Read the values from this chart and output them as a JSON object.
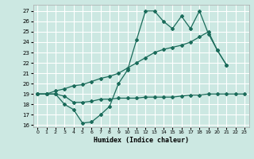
{
  "xlabel": "Humidex (Indice chaleur)",
  "bg_color": "#cce8e2",
  "grid_color": "#ffffff",
  "line_color": "#1a6b5a",
  "xlim": [
    -0.5,
    23.5
  ],
  "ylim": [
    15.8,
    27.6
  ],
  "xticks": [
    0,
    1,
    2,
    3,
    4,
    5,
    6,
    7,
    8,
    9,
    10,
    11,
    12,
    13,
    14,
    15,
    16,
    17,
    18,
    19,
    20,
    21,
    22,
    23
  ],
  "yticks": [
    16,
    17,
    18,
    19,
    20,
    21,
    22,
    23,
    24,
    25,
    26,
    27
  ],
  "line1": {
    "x": [
      0,
      1,
      2,
      3,
      4,
      5,
      6,
      7,
      8,
      9,
      10,
      11,
      12,
      13,
      14,
      15,
      16,
      17,
      18,
      19,
      20,
      21
    ],
    "y": [
      19,
      19,
      19,
      18,
      17.5,
      16.2,
      16.3,
      17.0,
      17.8,
      20.0,
      21.3,
      24.2,
      27.0,
      27.0,
      26.0,
      25.3,
      26.5,
      25.3,
      27.0,
      24.8,
      23.2,
      21.8
    ]
  },
  "line2": {
    "x": [
      0,
      1,
      2,
      3,
      4,
      5,
      6,
      7,
      8,
      9,
      10,
      11,
      12,
      13,
      14,
      15,
      16,
      17,
      18,
      19,
      20,
      21
    ],
    "y": [
      19,
      19,
      19.3,
      19.5,
      19.8,
      19.9,
      20.2,
      20.5,
      20.7,
      21.0,
      21.5,
      22.0,
      22.5,
      23.0,
      23.3,
      23.5,
      23.7,
      24.0,
      24.5,
      25.0,
      23.2,
      21.8
    ]
  },
  "line3": {
    "x": [
      0,
      1,
      2,
      3,
      4,
      5,
      6,
      7,
      8,
      9,
      10,
      11,
      12,
      13,
      14,
      15,
      16,
      17,
      18,
      19,
      20,
      21,
      22,
      23
    ],
    "y": [
      19,
      19,
      19,
      18.8,
      18.2,
      18.2,
      18.3,
      18.5,
      18.5,
      18.6,
      18.6,
      18.6,
      18.7,
      18.7,
      18.7,
      18.7,
      18.8,
      18.9,
      18.9,
      19.0,
      19.0,
      19.0,
      19.0,
      19.0
    ]
  }
}
